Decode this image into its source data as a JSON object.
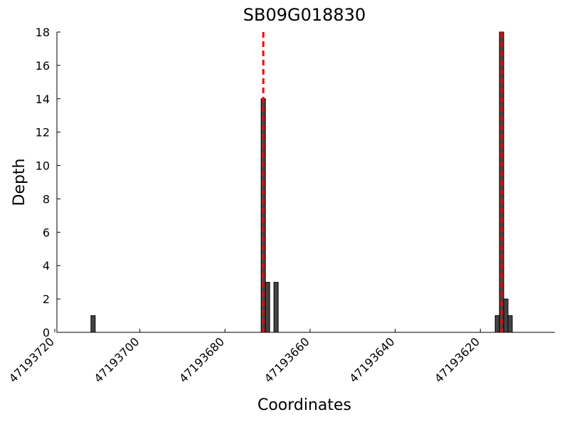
{
  "chart_data": {
    "type": "bar",
    "title": "SB09G018830",
    "x_label": "Coordinates",
    "y_label": "Depth",
    "x": [
      47193711,
      47193671,
      47193670,
      47193668,
      47193616,
      47193615,
      47193614,
      47193613
    ],
    "values": [
      1,
      14,
      3,
      3,
      1,
      18,
      2,
      1
    ],
    "color": "#444444",
    "edge_color": "#000000",
    "xlim": [
      47193719.5,
      47193602.5
    ],
    "xticks": [
      47193720,
      47193700,
      47193680,
      47193660,
      47193640,
      47193620
    ],
    "ylim": [
      0,
      18
    ],
    "yticks": [
      0,
      2,
      4,
      6,
      8,
      10,
      12,
      14,
      16,
      18
    ],
    "vlines": [
      47193671,
      47193615
    ],
    "vline_color": "#ff0000"
  }
}
